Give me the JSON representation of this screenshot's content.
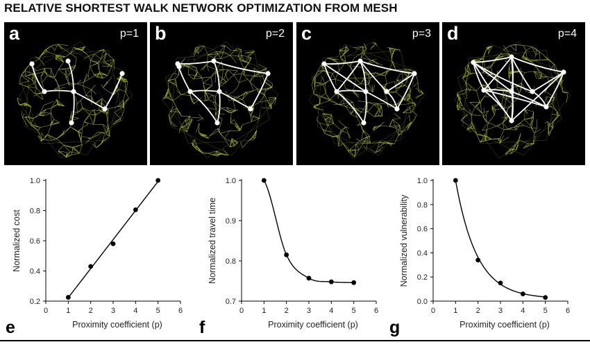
{
  "title": "RELATIVE SHORTEST WALK NETWORK OPTIMIZATION FROM MESH",
  "colors": {
    "mesh": "#b6cf3a",
    "network": "#ffffff",
    "background": "#000000",
    "ink": "#000000"
  },
  "panels": [
    {
      "letter": "a",
      "p_label": "p=1"
    },
    {
      "letter": "b",
      "p_label": "p=2"
    },
    {
      "letter": "c",
      "p_label": "p=3"
    },
    {
      "letter": "d",
      "p_label": "p=4"
    }
  ],
  "chart_data": [
    {
      "type": "scatter",
      "panel_letter": "e",
      "title": "",
      "xlabel": "Proximity coefficient (p)",
      "ylabel": "Normalized cost",
      "x": [
        1,
        2,
        3,
        4,
        5
      ],
      "y": [
        0.225,
        0.43,
        0.58,
        0.805,
        1.0
      ],
      "fit": "linear",
      "xlim": [
        0,
        6
      ],
      "ylim": [
        0.2,
        1.0
      ],
      "xticks": [
        0,
        1,
        2,
        3,
        4,
        5,
        6
      ],
      "yticks": [
        0.2,
        0.4,
        0.6,
        0.8,
        1.0
      ],
      "tick_labels_y": [
        "0.2",
        "0.4",
        "0.6",
        "0.8",
        "1.0"
      ],
      "grid": false
    },
    {
      "type": "scatter",
      "panel_letter": "f",
      "title": "",
      "xlabel": "Proximity coefficient (p)",
      "ylabel": "Normalized travel time",
      "x": [
        1,
        2,
        3,
        4,
        5
      ],
      "y": [
        1.0,
        0.815,
        0.757,
        0.748,
        0.746
      ],
      "fit": "smooth",
      "xlim": [
        0,
        6
      ],
      "ylim": [
        0.7,
        1.0
      ],
      "xticks": [
        0,
        1,
        2,
        3,
        4,
        5,
        6
      ],
      "yticks": [
        0.7,
        0.8,
        0.9,
        1.0
      ],
      "tick_labels_y": [
        "0.7",
        "0.8",
        "0.9",
        "1.0"
      ],
      "grid": false
    },
    {
      "type": "scatter",
      "panel_letter": "g",
      "title": "",
      "xlabel": "Proximity coefficient (p)",
      "ylabel": "Normalized vulnerability",
      "x": [
        1,
        2,
        3,
        4,
        5
      ],
      "y": [
        1.0,
        0.34,
        0.15,
        0.06,
        0.03
      ],
      "fit": "smooth",
      "xlim": [
        0,
        6
      ],
      "ylim": [
        0.0,
        1.0
      ],
      "xticks": [
        0,
        1,
        2,
        3,
        4,
        5,
        6
      ],
      "yticks": [
        0.0,
        0.2,
        0.4,
        0.6,
        0.8,
        1.0
      ],
      "tick_labels_y": [
        "0.0",
        "0.2",
        "0.4",
        "0.6",
        "0.8",
        "1.0"
      ],
      "grid": false
    }
  ]
}
